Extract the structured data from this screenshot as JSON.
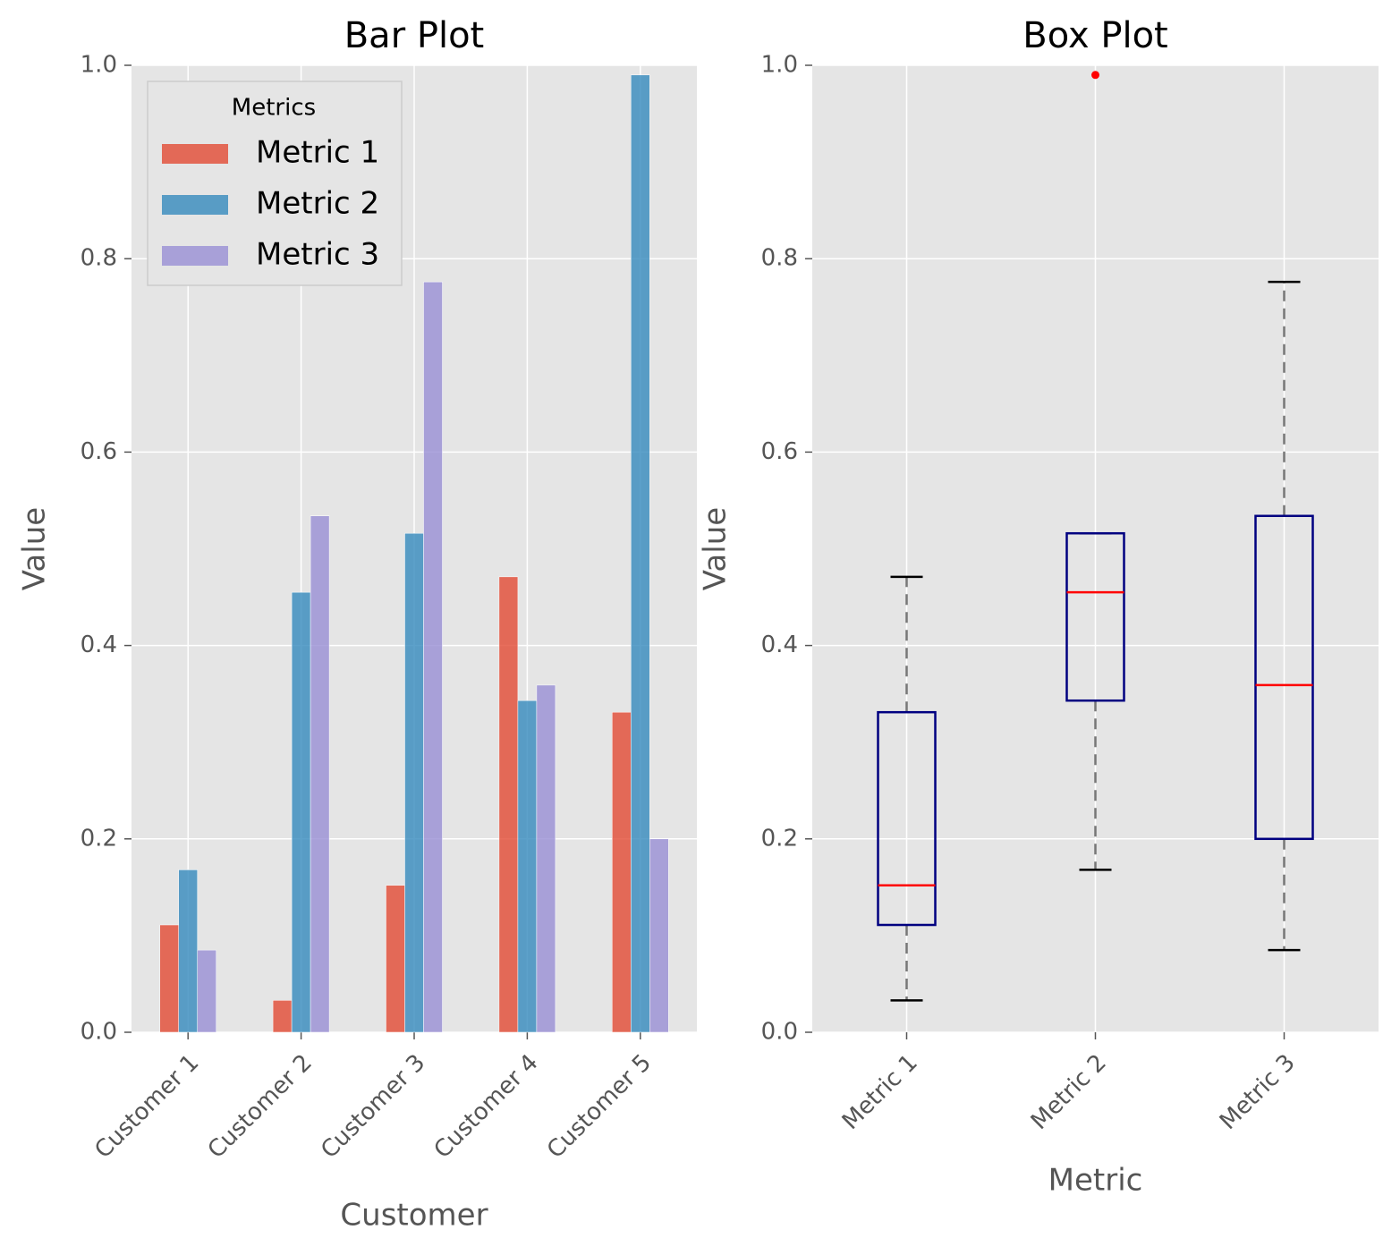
{
  "chart_data": [
    {
      "type": "bar",
      "title": "Bar Plot",
      "xlabel": "Customer",
      "ylabel": "Value",
      "categories": [
        "Customer 1",
        "Customer 2",
        "Customer 3",
        "Customer 4",
        "Customer 5"
      ],
      "series": [
        {
          "name": "Metric 1",
          "color": "#e24a33",
          "values": [
            0.111,
            0.033,
            0.152,
            0.471,
            0.331
          ]
        },
        {
          "name": "Metric 2",
          "color": "#348abd",
          "values": [
            0.168,
            0.455,
            0.516,
            0.343,
            0.99
          ]
        },
        {
          "name": "Metric 3",
          "color": "#988ed5",
          "values": [
            0.085,
            0.534,
            0.776,
            0.359,
            0.2
          ]
        }
      ],
      "legend": {
        "title": "Metrics",
        "loc": "upper left"
      },
      "ylim": [
        0,
        1
      ],
      "yticks": [
        {
          "value": 0,
          "label": "0.0"
        },
        0.2,
        0.4,
        0.6,
        0.8,
        {
          "value": 1,
          "label": "1.0"
        }
      ],
      "grid": true
    },
    {
      "type": "box",
      "title": "Box Plot",
      "xlabel": "Metric",
      "ylabel": "Value",
      "categories": [
        "Metric 1",
        "Metric 2",
        "Metric 3"
      ],
      "boxes": [
        {
          "whislo": 0.033,
          "q1": 0.111,
          "med": 0.152,
          "q3": 0.331,
          "whishi": 0.471,
          "fliers": []
        },
        {
          "whislo": 0.168,
          "q1": 0.343,
          "med": 0.455,
          "q3": 0.516,
          "whishi": 0.516,
          "fliers": [
            0.99
          ]
        },
        {
          "whislo": 0.085,
          "q1": 0.2,
          "med": 0.359,
          "q3": 0.534,
          "whishi": 0.776,
          "fliers": []
        }
      ],
      "box_color": "#000080",
      "median_color": "#ff0000",
      "whisker_color": "#777777",
      "flier_color": "#ff0000",
      "ylim": [
        0,
        1
      ],
      "yticks": [
        {
          "value": 0,
          "label": "0.0"
        },
        0.2,
        0.4,
        0.6,
        0.8,
        {
          "value": 1,
          "label": "1.0"
        }
      ],
      "grid": true
    }
  ]
}
